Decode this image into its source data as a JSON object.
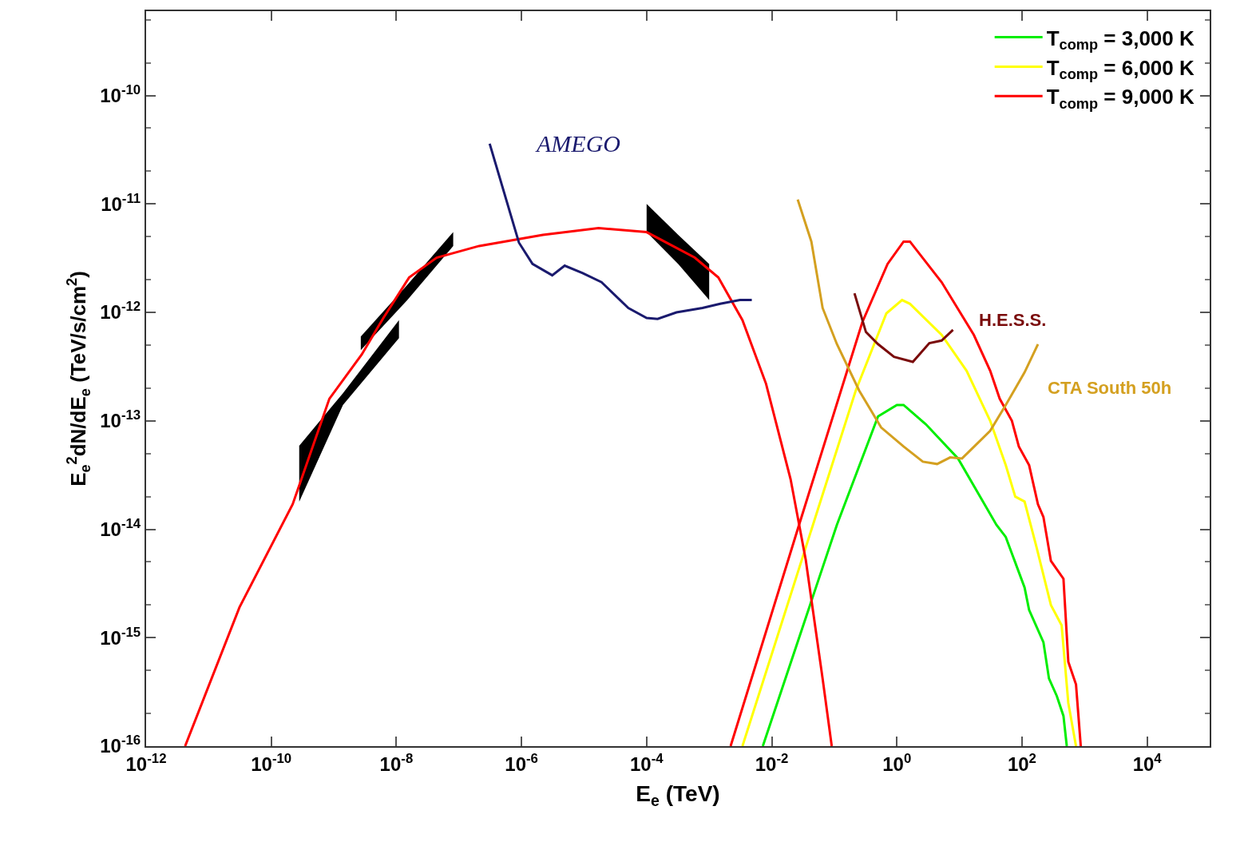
{
  "chart_data": {
    "type": "line",
    "xlabel": "E$_{e}$ (TeV)",
    "ylabel": "E$_{e}$$^{2}$dN/dE$_{e}$ (TeV/s/cm$^{2}$)",
    "log": "xy",
    "legend": "top right",
    "xlim": [
      1e-12,
      100000.0
    ],
    "ylim": [
      1e-16,
      6e-10
    ],
    "xticks": [
      {
        "value": 1e-12,
        "label": "10$^{-12}$"
      },
      {
        "value": 1e-10,
        "label": "10$^{-10}$"
      },
      {
        "value": 1e-08,
        "label": "10$^{-8}$"
      },
      {
        "value": 1e-06,
        "label": "10$^{-6}$"
      },
      {
        "value": 0.0001,
        "label": "10$^{-4}$"
      },
      {
        "value": 0.01,
        "label": "10$^{-2}$"
      },
      {
        "value": 1,
        "label": "10$^{0}$"
      },
      {
        "value": 100,
        "label": "10$^{2}$"
      },
      {
        "value": 10000,
        "label": "10$^{4}$"
      }
    ],
    "yticks": [
      {
        "value": 1e-16,
        "label": "10$^{-16}$"
      },
      {
        "value": 1e-15,
        "label": "10$^{-15}$"
      },
      {
        "value": 1e-14,
        "label": "10$^{-14}$"
      },
      {
        "value": 1e-13,
        "label": "10$^{-13}$"
      },
      {
        "value": 1e-12,
        "label": "10$^{-12}$"
      },
      {
        "value": 1e-11,
        "label": "10$^{-11}$"
      },
      {
        "value": 1e-10,
        "label": "10$^{-10}$"
      }
    ],
    "series": [
      {
        "name": "T$_{comp}$ = 3,000 K",
        "color": "#00ee00",
        "x": [
          0.0072,
          0.11,
          0.5,
          1.0,
          1.28,
          2.9,
          9.5,
          39,
          55,
          110,
          130,
          220,
          270,
          360,
          460,
          520
        ],
        "values": [
          1e-16,
          1.1e-14,
          1.1e-13,
          1.4e-13,
          1.4e-13,
          9.3e-14,
          4.5e-14,
          1.1e-14,
          8.5e-15,
          2.9e-15,
          1.8e-15,
          9.1e-16,
          4.2e-16,
          2.9e-16,
          1.9e-16,
          1e-16
        ]
      },
      {
        "name": "T$_{comp}$ = 6,000 K",
        "color": "#ffff00",
        "x": [
          0.0034,
          0.22,
          0.68,
          1.21,
          1.62,
          5.2,
          13,
          31,
          55,
          78,
          110,
          170,
          290,
          430,
          550,
          730
        ],
        "values": [
          1e-16,
          1.9e-13,
          9.8e-13,
          1.3e-12,
          1.2e-12,
          6.2e-13,
          2.9e-13,
          1e-13,
          3.9e-14,
          2e-14,
          1.8e-14,
          6.9e-15,
          2e-15,
          1.3e-15,
          2.5e-16,
          1e-16
        ]
      },
      {
        "name": "T$_{comp}$ = 9,000 K",
        "color": "#ff0000",
        "x": [
          0.0022,
          0.026,
          0.28,
          0.71,
          1.28,
          1.62,
          5.2,
          17,
          31,
          44,
          69,
          89,
          130,
          180,
          220,
          290,
          460,
          550,
          730,
          870
        ],
        "values": [
          1e-16,
          1e-14,
          8.1e-13,
          2.8e-12,
          4.5e-12,
          4.5e-12,
          1.9e-12,
          6.2e-13,
          2.9e-13,
          1.6e-13,
          1e-13,
          5.8e-14,
          3.9e-14,
          1.7e-14,
          1.3e-14,
          5.1e-15,
          3.5e-15,
          6e-16,
          3.7e-16,
          1e-16
        ]
      },
      {
        "color": "#ff0000",
        "x": [
          4.2e-12,
          3.1e-11,
          2.2e-10,
          8.5e-10,
          2.8e-09,
          6.2e-09,
          1.6e-08,
          4.4e-08,
          2.1e-07,
          2.2e-06,
          1.7e-05,
          0.0001,
          0.00059,
          0.0014,
          0.0034,
          0.0081,
          0.02,
          0.035,
          0.065,
          0.091
        ],
        "values": [
          1e-16,
          1.9e-15,
          1.7e-14,
          1.6e-13,
          4.1e-13,
          8.9e-13,
          2.1e-12,
          3.2e-12,
          4.1e-12,
          5.2e-12,
          6e-12,
          5.5e-12,
          3.2e-12,
          2.1e-12,
          8.5e-13,
          2.2e-13,
          2.9e-14,
          5.2e-15,
          4.2e-16,
          1e-16
        ]
      },
      {
        "name": "AMEGO",
        "color": "#1a1a6e",
        "x": [
          3.1e-07,
          9.1e-07,
          1.5e-06,
          3.1e-06,
          4.9e-06,
          9.5e-06,
          1.9e-05,
          5.1e-05,
          0.0001,
          0.00015,
          0.0003,
          0.00078,
          0.0015,
          0.0031,
          0.0048
        ],
        "values": [
          3.6e-11,
          4.4e-12,
          2.8e-12,
          2.2e-12,
          2.7e-12,
          2.3e-12,
          1.9e-12,
          1.1e-12,
          8.9e-13,
          8.7e-13,
          1e-12,
          1.1e-12,
          1.2e-12,
          1.3e-12,
          1.3e-12
        ]
      },
      {
        "name": "H.E.S.S.",
        "color": "#7a0a0a",
        "x": [
          0.21,
          0.32,
          0.5,
          0.9,
          1.8,
          3.3,
          5.2,
          7.9
        ],
        "values": [
          1.5e-12,
          6.6e-13,
          5.1e-13,
          3.9e-13,
          3.5e-13,
          5.2e-13,
          5.5e-13,
          6.9e-13
        ]
      },
      {
        "name": "CTA South 50h",
        "color": "#d4a020",
        "x": [
          0.026,
          0.043,
          0.065,
          0.11,
          0.25,
          0.56,
          1.28,
          2.6,
          4.4,
          7.1,
          11,
          31,
          55,
          110,
          180
        ],
        "values": [
          1.1e-11,
          4.5e-12,
          1.1e-12,
          5.1e-13,
          1.9e-13,
          8.7e-14,
          5.8e-14,
          4.2e-14,
          4e-14,
          4.6e-14,
          4.5e-14,
          8.1e-14,
          1.4e-13,
          2.8e-13,
          5.1e-13
        ]
      },
      {
        "color": "#000000",
        "x": [
          2.8e-10,
          1.4e-09,
          1.1e-08
        ],
        "values": [
          null,
          null,
          null
        ],
        "lower": [
          1.8e-14,
          1.4e-13,
          5.8e-13
        ],
        "upper": [
          5.9e-14,
          1.8e-13,
          8.5e-13
        ]
      },
      {
        "color": "#000000",
        "x": [
          2.7e-09,
          1.5e-08,
          8.1e-08
        ],
        "values": [
          null,
          null,
          null
        ],
        "lower": [
          4.5e-13,
          1.3e-12,
          4.1e-12
        ],
        "upper": [
          6e-13,
          1.8e-12,
          5.5e-12
        ]
      },
      {
        "color": "#000000",
        "x": [
          0.0001,
          0.00032,
          0.001
        ],
        "values": [
          null,
          null,
          null
        ],
        "lower": [
          5.5e-12,
          2.8e-12,
          1.3e-12
        ],
        "upper": [
          1e-11,
          5.2e-12,
          2.8e-12
        ]
      }
    ]
  }
}
